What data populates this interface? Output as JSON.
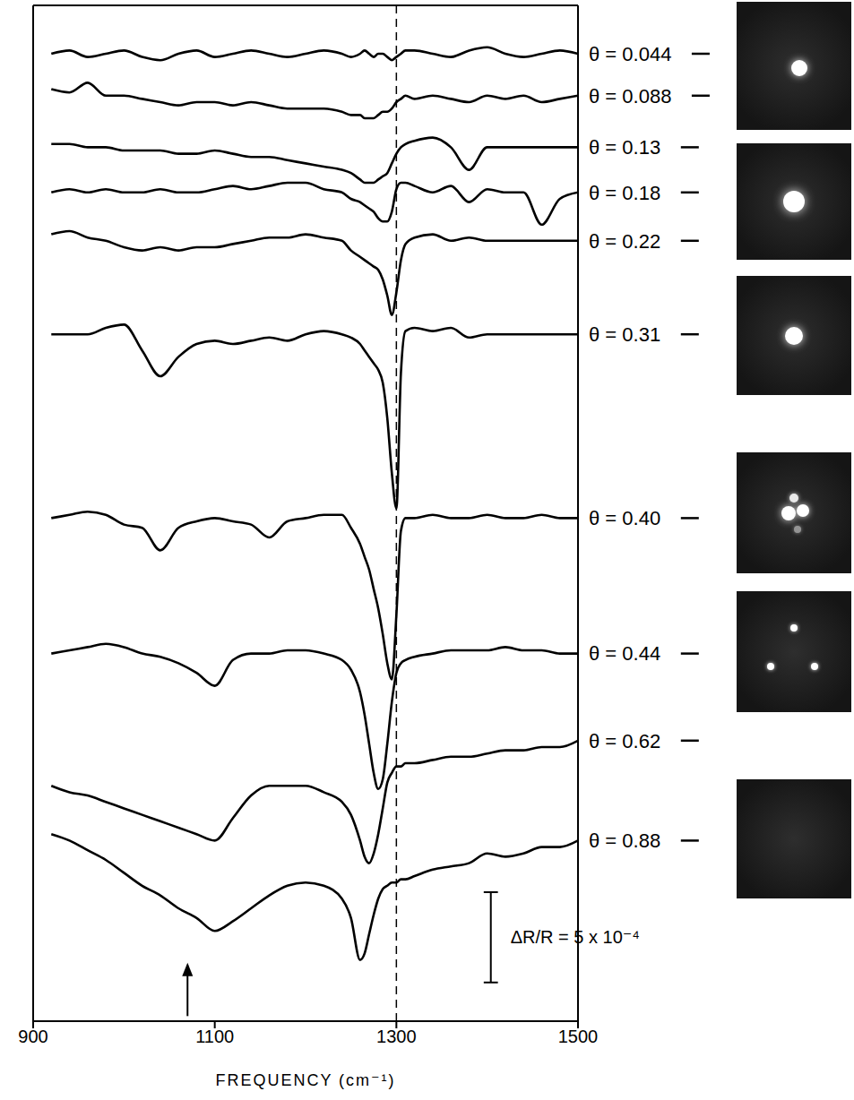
{
  "chart_data": {
    "type": "line",
    "x_label": "FREQUENCY (cm⁻¹)",
    "color": "#000000",
    "grid": false,
    "tick_labels": "x",
    "xlim": [
      900,
      1500
    ],
    "xticks": [
      900,
      1100,
      1300,
      1500
    ],
    "ylim": [
      0,
      31.5
    ],
    "yticks": [
      5.7,
      8.6,
      11.4,
      15.6,
      21.3,
      24.2,
      25.7,
      27.1,
      28.6,
      30.0
    ],
    "x": [
      920,
      940,
      960,
      980,
      1000,
      1020,
      1040,
      1060,
      1080,
      1100,
      1120,
      1140,
      1160,
      1180,
      1200,
      1220,
      1240,
      1250,
      1260,
      1265,
      1270,
      1275,
      1280,
      1285,
      1290,
      1295,
      1300,
      1305,
      1310,
      1320,
      1340,
      1360,
      1380,
      1400,
      1420,
      1440,
      1460,
      1480,
      1500
    ],
    "series": [
      {
        "name": "θ = 0.044",
        "values": [
          30.0,
          30.1,
          29.9,
          30.0,
          30.1,
          29.9,
          29.8,
          30.0,
          30.1,
          29.9,
          30.0,
          30.1,
          30.0,
          29.9,
          30.0,
          30.1,
          30.0,
          29.9,
          30.0,
          30.1,
          30.0,
          29.9,
          30.0,
          30.0,
          29.9,
          29.8,
          29.9,
          30.0,
          30.1,
          30.1,
          30.0,
          29.9,
          30.1,
          30.2,
          30.0,
          29.9,
          30.0,
          30.1,
          30.0
        ]
      },
      {
        "name": "θ = 0.088",
        "values": [
          28.9,
          28.8,
          29.1,
          28.7,
          28.7,
          28.6,
          28.5,
          28.4,
          28.5,
          28.5,
          28.4,
          28.5,
          28.4,
          28.3,
          28.3,
          28.3,
          28.2,
          28.1,
          28.1,
          28.0,
          28.0,
          28.0,
          28.1,
          28.2,
          28.2,
          28.3,
          28.5,
          28.6,
          28.7,
          28.6,
          28.7,
          28.6,
          28.5,
          28.7,
          28.6,
          28.7,
          28.5,
          28.6,
          28.7
        ]
      },
      {
        "name": "θ = 0.13",
        "values": [
          27.2,
          27.2,
          27.1,
          27.1,
          27.0,
          27.0,
          27.0,
          26.9,
          26.9,
          27.0,
          26.9,
          26.8,
          26.8,
          26.7,
          26.6,
          26.5,
          26.4,
          26.3,
          26.1,
          26.0,
          26.0,
          26.0,
          26.1,
          26.2,
          26.3,
          26.6,
          26.9,
          27.1,
          27.2,
          27.3,
          27.4,
          27.1,
          26.4,
          27.1,
          27.1,
          27.1,
          27.1,
          27.1,
          27.1
        ]
      },
      {
        "name": "θ = 0.18",
        "values": [
          25.7,
          25.8,
          25.7,
          25.8,
          25.7,
          25.7,
          25.8,
          25.7,
          25.7,
          25.8,
          25.9,
          25.8,
          25.9,
          26.0,
          26.0,
          25.8,
          25.7,
          25.5,
          25.4,
          25.3,
          25.2,
          25.1,
          24.9,
          24.8,
          24.8,
          25.1,
          25.8,
          26.0,
          26.0,
          25.9,
          25.7,
          25.9,
          25.4,
          25.8,
          25.7,
          25.7,
          24.7,
          25.5,
          25.7
        ]
      },
      {
        "name": "θ = 0.22",
        "values": [
          24.4,
          24.5,
          24.3,
          24.2,
          24.0,
          23.9,
          24.0,
          23.9,
          24.0,
          24.0,
          24.1,
          24.2,
          24.3,
          24.3,
          24.4,
          24.3,
          24.2,
          23.9,
          23.7,
          23.6,
          23.5,
          23.4,
          23.3,
          23.0,
          22.5,
          21.9,
          22.6,
          23.6,
          24.1,
          24.3,
          24.4,
          24.2,
          24.3,
          24.2,
          24.2,
          24.2,
          24.2,
          24.2,
          24.2
        ]
      },
      {
        "name": "θ = 0.31",
        "values": [
          21.3,
          21.3,
          21.3,
          21.5,
          21.6,
          20.8,
          20.0,
          20.6,
          21.0,
          21.1,
          21.0,
          21.1,
          21.2,
          21.1,
          21.3,
          21.4,
          21.3,
          21.2,
          21.0,
          20.8,
          20.6,
          20.4,
          20.2,
          19.8,
          18.7,
          17.0,
          15.9,
          20.1,
          21.4,
          21.5,
          21.4,
          21.5,
          21.2,
          21.3,
          21.3,
          21.3,
          21.3,
          21.3,
          21.3
        ]
      },
      {
        "name": "θ = 0.40",
        "values": [
          15.6,
          15.7,
          15.8,
          15.7,
          15.4,
          15.3,
          14.6,
          15.3,
          15.5,
          15.6,
          15.5,
          15.4,
          15.0,
          15.5,
          15.6,
          15.7,
          15.7,
          15.3,
          14.8,
          14.4,
          14.0,
          13.4,
          12.8,
          12.0,
          11.1,
          10.6,
          12.6,
          15.2,
          15.6,
          15.6,
          15.7,
          15.6,
          15.6,
          15.7,
          15.6,
          15.6,
          15.7,
          15.6,
          15.6
        ]
      },
      {
        "name": "θ = 0.44",
        "values": [
          11.4,
          11.5,
          11.6,
          11.7,
          11.6,
          11.4,
          11.3,
          11.1,
          10.8,
          10.4,
          11.2,
          11.4,
          11.4,
          11.5,
          11.5,
          11.4,
          11.2,
          10.9,
          10.2,
          9.5,
          8.6,
          7.7,
          7.2,
          7.5,
          8.6,
          9.9,
          10.8,
          11.1,
          11.2,
          11.3,
          11.4,
          11.5,
          11.5,
          11.5,
          11.6,
          11.5,
          11.5,
          11.4,
          11.4
        ]
      },
      {
        "name": "θ = 0.62",
        "values": [
          7.3,
          7.1,
          7.0,
          6.8,
          6.6,
          6.4,
          6.2,
          6.0,
          5.8,
          5.6,
          6.3,
          7.0,
          7.3,
          7.3,
          7.3,
          7.1,
          6.8,
          6.4,
          5.6,
          5.1,
          4.9,
          5.2,
          5.8,
          6.6,
          7.4,
          7.7,
          7.9,
          7.9,
          8.0,
          8.0,
          8.1,
          8.2,
          8.2,
          8.3,
          8.4,
          8.4,
          8.5,
          8.5,
          8.7
        ]
      },
      {
        "name": "θ = 0.88",
        "values": [
          5.8,
          5.6,
          5.3,
          5.0,
          4.6,
          4.2,
          3.9,
          3.5,
          3.2,
          2.8,
          3.1,
          3.5,
          3.9,
          4.2,
          4.3,
          4.2,
          3.8,
          3.2,
          1.9,
          2.1,
          2.7,
          3.3,
          3.8,
          4.1,
          4.2,
          4.3,
          4.3,
          4.4,
          4.4,
          4.5,
          4.7,
          4.8,
          4.9,
          5.2,
          5.1,
          5.2,
          5.4,
          5.4,
          5.6
        ]
      }
    ],
    "reference_lines": [
      {
        "x": 1300,
        "line_style": "dashed"
      }
    ],
    "arrows": [
      {
        "x": 1070
      }
    ],
    "scale_bar": {
      "value": 2.8,
      "label": "ΔR/R = 5 x 10⁻⁴"
    }
  }
}
